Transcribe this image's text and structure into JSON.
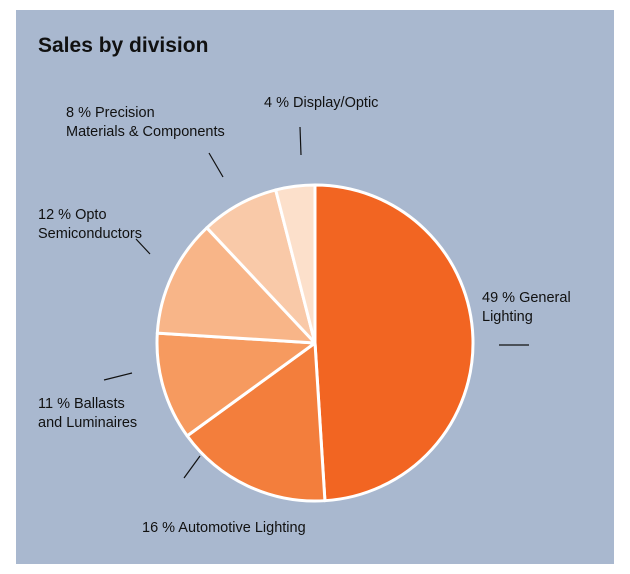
{
  "chart_data": {
    "type": "pie",
    "title": "Sales by division",
    "slices": [
      {
        "name": "General Lighting",
        "value": 49,
        "label_lines": [
          "49 % General",
          "Lighting"
        ],
        "color": "#f26522"
      },
      {
        "name": "Automotive Lighting",
        "value": 16,
        "label_lines": [
          "16 % Automotive Lighting"
        ],
        "color": "#f37e3c"
      },
      {
        "name": "Ballasts and Luminaires",
        "value": 11,
        "label_lines": [
          "11 % Ballasts",
          "and Luminaires"
        ],
        "color": "#f69a5f"
      },
      {
        "name": "Opto Semiconductors",
        "value": 12,
        "label_lines": [
          "12 % Opto",
          "Semiconductors"
        ],
        "color": "#f8b588"
      },
      {
        "name": "Precision Materials & Components",
        "value": 8,
        "label_lines": [
          "8 % Precision",
          "Materials & Components"
        ],
        "color": "#f9c9a8"
      },
      {
        "name": "Display/Optic",
        "value": 4,
        "label_lines": [
          "4 % Display/Optic"
        ],
        "color": "#fce0cb"
      }
    ],
    "start_angle": "12 o'clock, clockwise",
    "background_color": "#a9b8cf",
    "separator_color": "#ffffff"
  }
}
